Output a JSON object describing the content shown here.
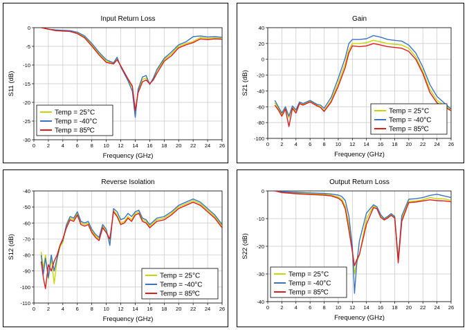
{
  "chart_data": [
    {
      "type": "line",
      "title": "Input Return Loss",
      "xlabel": "Frequency (GHz)",
      "ylabel": "S11 (dB)",
      "xlim": [
        0,
        26
      ],
      "ylim": [
        -30,
        0
      ],
      "xticks": [
        0,
        2,
        4,
        6,
        8,
        10,
        12,
        14,
        16,
        18,
        20,
        22,
        24,
        26
      ],
      "yticks": [
        0,
        -5,
        -10,
        -15,
        -20,
        -25,
        -30
      ],
      "ytick_labels": [
        "0",
        "-5",
        "-10",
        "-15",
        "-20",
        "-25",
        "-30"
      ],
      "grid": true,
      "legend_position": "bottom-left",
      "series": [
        {
          "name": "Temp = 25°C",
          "color": "#c8d400",
          "x": [
            1,
            2,
            3,
            4,
            5,
            6,
            7,
            8,
            9,
            10,
            11,
            11.5,
            12,
            13,
            13.6,
            14,
            14.4,
            15,
            15.5,
            16,
            16.5,
            17,
            18,
            19,
            20,
            21,
            22,
            23,
            24,
            25,
            26
          ],
          "y": [
            0,
            -0.4,
            -0.7,
            -0.8,
            -0.9,
            -1.4,
            -2.5,
            -4.6,
            -7,
            -9,
            -9.5,
            -8.4,
            -10.3,
            -14,
            -16,
            -22.5,
            -17,
            -13.8,
            -13.5,
            -15,
            -13.8,
            -11.5,
            -8.6,
            -7,
            -5,
            -4.2,
            -3.7,
            -2.6,
            -2.9,
            -2.8,
            -2.9
          ]
        },
        {
          "name": "Temp = -40°C",
          "color": "#3a72c4",
          "x": [
            1,
            2,
            3,
            4,
            5,
            6,
            7,
            8,
            9,
            10,
            11,
            11.5,
            12,
            13,
            13.6,
            14,
            14.4,
            15,
            15.5,
            16,
            16.5,
            17,
            18,
            19,
            20,
            21,
            22,
            23,
            24,
            25,
            26
          ],
          "y": [
            0,
            -0.4,
            -0.6,
            -0.7,
            -0.8,
            -1.2,
            -2.2,
            -4.2,
            -6.6,
            -8.6,
            -9.4,
            -7.9,
            -10.5,
            -14.2,
            -17,
            -24,
            -16.5,
            -13.2,
            -12.8,
            -15.2,
            -13.5,
            -11.2,
            -8.2,
            -6.5,
            -4.6,
            -3.8,
            -2.4,
            -2.2,
            -2.5,
            -2.4,
            -2.6
          ]
        },
        {
          "name": "Temp = 85ºC",
          "color": "#e11a1a",
          "x": [
            1,
            2,
            3,
            4,
            5,
            6,
            7,
            8,
            9,
            10,
            11,
            11.5,
            12,
            13,
            13.6,
            14,
            14.4,
            15,
            15.5,
            16,
            16.5,
            17,
            18,
            19,
            20,
            21,
            22,
            23,
            24,
            25,
            26
          ],
          "y": [
            0,
            -0.4,
            -0.8,
            -0.9,
            -1,
            -1.6,
            -2.7,
            -4.9,
            -7.3,
            -9.3,
            -9.7,
            -8.6,
            -10.2,
            -13.7,
            -15.6,
            -22.2,
            -17.4,
            -14.5,
            -14,
            -15,
            -14,
            -12.2,
            -9,
            -7.5,
            -5.4,
            -4.6,
            -4,
            -3,
            -3.2,
            -3,
            -3.1
          ]
        }
      ]
    },
    {
      "type": "line",
      "title": "Gain",
      "xlabel": "Frequency (GHz)",
      "ylabel": "S21 (dB)",
      "xlim": [
        0,
        26
      ],
      "ylim": [
        -100,
        40
      ],
      "xticks": [
        0,
        2,
        4,
        6,
        8,
        10,
        12,
        14,
        16,
        18,
        20,
        22,
        24,
        26
      ],
      "yticks": [
        40,
        20,
        0,
        -20,
        -40,
        -60,
        -80,
        -100
      ],
      "ytick_labels": [
        "40",
        "20",
        "0",
        "-20",
        "-40",
        "-60",
        "-80",
        "-100"
      ],
      "grid": true,
      "legend_position": "bottom-right",
      "series": [
        {
          "name": "Temp = 25°C",
          "color": "#c8d400",
          "x": [
            1,
            1.5,
            2,
            2.5,
            3,
            3.5,
            4,
            4.5,
            5,
            6,
            7,
            7.5,
            8,
            9,
            10,
            11,
            11.5,
            12,
            13,
            14,
            15,
            16,
            17,
            18,
            19,
            20,
            21,
            22,
            23,
            24,
            25,
            26
          ],
          "y": [
            -55,
            -62,
            -70,
            -62,
            -74,
            -60,
            -66,
            -55,
            -57,
            -53,
            -58,
            -60,
            -65,
            -52,
            -30,
            -5,
            12,
            20,
            20,
            21,
            24,
            22,
            20,
            19,
            18,
            14,
            3,
            -15,
            -38,
            -52,
            -58,
            -64
          ]
        },
        {
          "name": "Temp = -40°C",
          "color": "#3a72c4",
          "x": [
            1,
            1.5,
            2,
            2.5,
            3,
            3.5,
            4,
            4.5,
            5,
            6,
            7,
            7.5,
            8,
            9,
            10,
            11,
            11.5,
            12,
            13,
            14,
            15,
            16,
            17,
            18,
            19,
            20,
            21,
            22,
            23,
            24,
            25,
            26
          ],
          "y": [
            -52,
            -60,
            -68,
            -60,
            -72,
            -59,
            -64,
            -54,
            -56,
            -52,
            -57,
            -58,
            -62,
            -48,
            -24,
            2,
            20,
            25,
            25,
            26,
            30,
            28,
            25,
            24,
            23,
            18,
            8,
            -10,
            -32,
            -47,
            -55,
            -63
          ]
        },
        {
          "name": "Temp = 85ºC",
          "color": "#e11a1a",
          "x": [
            1,
            1.5,
            2,
            2.5,
            3,
            3.5,
            4,
            4.5,
            5,
            6,
            7,
            7.5,
            8,
            9,
            10,
            11,
            11.5,
            12,
            13,
            14,
            15,
            16,
            17,
            18,
            19,
            20,
            21,
            22,
            23,
            24,
            25,
            26
          ],
          "y": [
            -58,
            -64,
            -72,
            -63,
            -85,
            -62,
            -68,
            -56,
            -58,
            -54,
            -59,
            -61,
            -66,
            -54,
            -34,
            -10,
            8,
            17,
            16,
            17,
            20,
            18,
            16,
            15,
            14,
            10,
            0,
            -18,
            -42,
            -55,
            -60,
            -65
          ]
        }
      ]
    },
    {
      "type": "line",
      "title": "Reverse Isolation",
      "xlabel": "Frequency (GHz)",
      "ylabel": "S12 (dB)",
      "xlim": [
        0,
        26
      ],
      "ylim": [
        -110,
        -40
      ],
      "xticks": [
        0,
        2,
        4,
        6,
        8,
        10,
        12,
        14,
        16,
        18,
        20,
        22,
        24,
        26
      ],
      "yticks": [
        -40,
        -50,
        -60,
        -70,
        -80,
        -90,
        -100,
        -110
      ],
      "ytick_labels": [
        "-40",
        "-50",
        "-60",
        "-70",
        "-80",
        "-90",
        "-100",
        "-110"
      ],
      "grid": true,
      "legend_position": "bottom-right",
      "series": [
        {
          "name": "Temp = 25°C",
          "color": "#c8d400",
          "x": [
            1,
            1.3,
            1.6,
            2,
            2.4,
            2.8,
            3.2,
            3.6,
            4,
            4.5,
            5,
            5.5,
            6,
            6.5,
            7,
            7.5,
            8,
            8.5,
            9,
            9.5,
            10,
            10.5,
            11,
            11.5,
            12,
            12.5,
            13,
            13.5,
            14,
            14.5,
            15,
            15.5,
            16,
            17,
            18,
            19,
            20,
            21,
            22,
            23,
            24,
            24.5,
            25,
            25.5,
            26
          ],
          "y": [
            -78,
            -88,
            -80,
            -95,
            -82,
            -98,
            -83,
            -75,
            -72,
            -62,
            -57,
            -58,
            -54,
            -60,
            -61,
            -60,
            -65,
            -68,
            -70,
            -62,
            -65,
            -71,
            -52,
            -55,
            -60,
            -59,
            -56,
            -58,
            -54,
            -53,
            -58,
            -59,
            -62,
            -58,
            -57,
            -54,
            -50,
            -48,
            -46,
            -48,
            -52,
            -54,
            -56,
            -59,
            -62
          ]
        },
        {
          "name": "Temp = -40°C",
          "color": "#3a72c4",
          "x": [
            1,
            1.3,
            1.6,
            2,
            2.4,
            2.8,
            3.2,
            3.6,
            4,
            4.5,
            5,
            5.5,
            6,
            6.5,
            7,
            7.5,
            8,
            8.5,
            9,
            9.5,
            10,
            10.5,
            11,
            11.5,
            12,
            12.5,
            13,
            13.5,
            14,
            14.5,
            15,
            15.5,
            16,
            17,
            18,
            19,
            20,
            21,
            22,
            23,
            24,
            24.5,
            25,
            25.5,
            26
          ],
          "y": [
            -80,
            -92,
            -82,
            -94,
            -80,
            -90,
            -82,
            -74,
            -71,
            -61,
            -56,
            -57,
            -53,
            -59,
            -60,
            -59,
            -64,
            -67,
            -69,
            -61,
            -64,
            -74,
            -51,
            -53,
            -58,
            -57,
            -54,
            -56,
            -53,
            -52,
            -57,
            -58,
            -61,
            -57,
            -56,
            -53,
            -49,
            -47,
            -45,
            -47,
            -51,
            -53,
            -55,
            -58,
            -61
          ]
        },
        {
          "name": "Temp = 85ºC",
          "color": "#e11a1a",
          "x": [
            1,
            1.3,
            1.6,
            2,
            2.4,
            2.8,
            3.2,
            3.6,
            4,
            4.5,
            5,
            5.5,
            6,
            6.5,
            7,
            7.5,
            8,
            8.5,
            9,
            9.5,
            10,
            10.5,
            11,
            11.5,
            12,
            12.5,
            13,
            13.5,
            14,
            14.5,
            15,
            15.5,
            16,
            17,
            18,
            19,
            20,
            21,
            22,
            23,
            24,
            24.5,
            25,
            25.5,
            26
          ],
          "y": [
            -84,
            -94,
            -101,
            -86,
            -90,
            -84,
            -80,
            -74,
            -70,
            -63,
            -58,
            -59,
            -55,
            -61,
            -62,
            -61,
            -66,
            -69,
            -71,
            -63,
            -66,
            -70,
            -53,
            -56,
            -61,
            -60,
            -57,
            -59,
            -55,
            -54,
            -59,
            -60,
            -63,
            -59,
            -58,
            -55,
            -51,
            -49,
            -47,
            -49,
            -53,
            -55,
            -57,
            -60,
            -63
          ]
        }
      ]
    },
    {
      "type": "line",
      "title": "Output Return Loss",
      "xlabel": "Frequency (GHz)",
      "ylabel": "S22 (dB)",
      "xlim": [
        0,
        26
      ],
      "ylim": [
        -40,
        0
      ],
      "xticks": [
        0,
        2,
        4,
        6,
        8,
        10,
        12,
        14,
        16,
        18,
        20,
        22,
        24,
        26
      ],
      "yticks": [
        0,
        -10,
        -20,
        -30,
        -40
      ],
      "ytick_labels": [
        "0",
        "-10",
        "-20",
        "-30",
        "-40"
      ],
      "grid": true,
      "legend_position": "bottom-left",
      "series": [
        {
          "name": "Temp = 25°C",
          "color": "#c8d400",
          "x": [
            1,
            2,
            4,
            6,
            8,
            9,
            10,
            10.5,
            11,
            11.5,
            12,
            12.3,
            12.6,
            13,
            14,
            15,
            15.5,
            16,
            16.5,
            17,
            17.5,
            18,
            18.5,
            19,
            20,
            21,
            22,
            23,
            24,
            25,
            26
          ],
          "y": [
            0,
            -0.5,
            -0.8,
            -1,
            -1.2,
            -1.5,
            -2.2,
            -3,
            -5.5,
            -12,
            -21,
            -30,
            -26,
            -23,
            -10,
            -5.5,
            -6.2,
            -9,
            -10.2,
            -9.5,
            -8.5,
            -9.5,
            -24,
            -10,
            -3.8,
            -3.6,
            -3.2,
            -2.4,
            -2.8,
            -2.9,
            -3.4
          ]
        },
        {
          "name": "Temp = -40°C",
          "color": "#3a72c4",
          "x": [
            1,
            2,
            4,
            6,
            8,
            9,
            10,
            10.5,
            11,
            11.5,
            12,
            12.3,
            12.6,
            13,
            14,
            15,
            15.5,
            16,
            16.5,
            17,
            17.5,
            18,
            18.5,
            19,
            20,
            21,
            22,
            23,
            24,
            25,
            26
          ],
          "y": [
            0,
            -0.3,
            -0.5,
            -0.7,
            -0.9,
            -1.1,
            -1.5,
            -2,
            -3.5,
            -9,
            -20,
            -37,
            -27,
            -18,
            -8,
            -5,
            -5.8,
            -8.5,
            -10,
            -9.2,
            -8.2,
            -9.2,
            -25,
            -9,
            -3,
            -2.8,
            -2.4,
            -1.6,
            -1.2,
            -1.8,
            -2.4
          ]
        },
        {
          "name": "Temp = 85ºC",
          "color": "#e11a1a",
          "x": [
            1,
            2,
            4,
            6,
            8,
            9,
            10,
            10.5,
            11,
            11.5,
            12,
            12.3,
            12.6,
            13,
            14,
            15,
            15.5,
            16,
            16.5,
            17,
            17.5,
            18,
            18.5,
            19,
            20,
            21,
            22,
            23,
            24,
            25,
            26
          ],
          "y": [
            0,
            -0.6,
            -1,
            -1.3,
            -1.5,
            -1.8,
            -2.6,
            -3.6,
            -6.5,
            -14,
            -22,
            -27,
            -25,
            -23,
            -12,
            -6,
            -6.5,
            -9.5,
            -10.5,
            -9.8,
            -8.8,
            -9.8,
            -26,
            -11,
            -4.2,
            -4,
            -3.6,
            -3.2,
            -3.5,
            -3.6,
            -3.9
          ]
        }
      ]
    }
  ]
}
